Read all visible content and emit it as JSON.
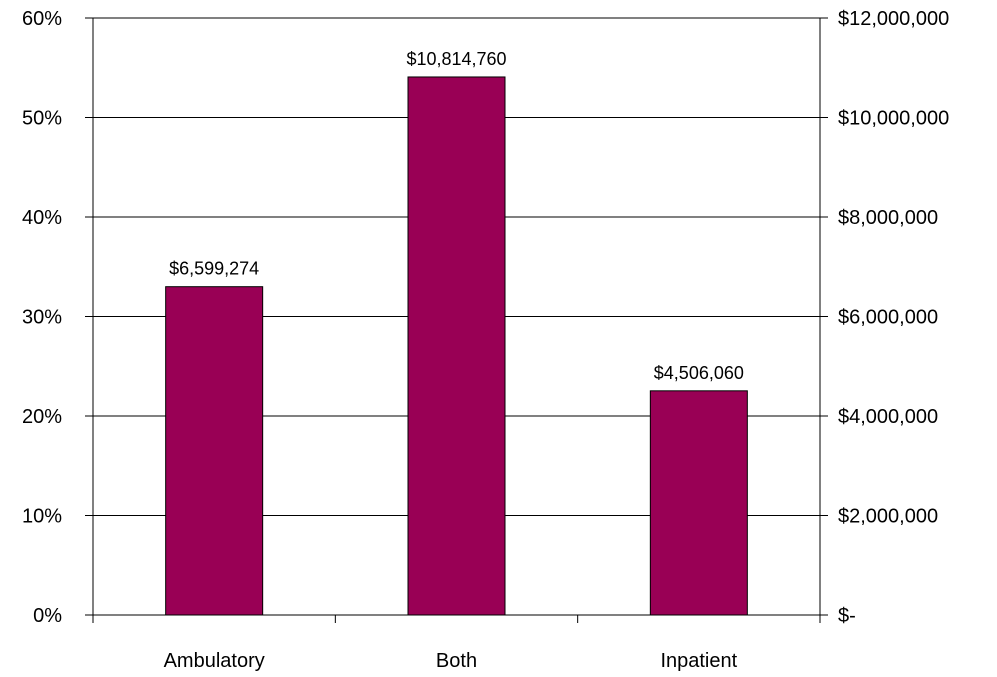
{
  "chart_data": {
    "type": "bar",
    "title": "",
    "xlabel": "",
    "ylabel": "",
    "categories": [
      "Ambulatory",
      "Both",
      "Inpatient"
    ],
    "series": [
      {
        "values": [
          6599274,
          10814760,
          4506060
        ],
        "color": "#990055"
      }
    ],
    "data_labels": [
      "$6,599,274",
      "$10,814,760",
      "$4,506,060"
    ],
    "ylim": [
      0,
      12000000
    ],
    "y2lim": [
      0,
      0.6
    ],
    "right_axis_ticks": [
      "$-",
      "$2,000,000",
      "$4,000,000",
      "$6,000,000",
      "$8,000,000",
      "$10,000,000",
      "$12,000,000"
    ],
    "left_axis_ticks": [
      "0%",
      "10%",
      "20%",
      "30%",
      "40%",
      "50%",
      "60%"
    ],
    "grid": true,
    "legend": "none"
  }
}
